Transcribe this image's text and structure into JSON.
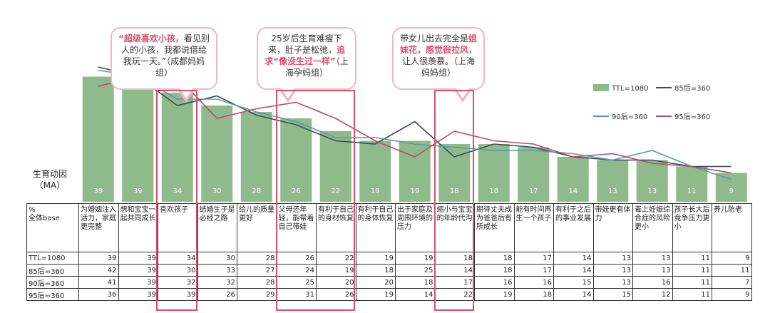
{
  "chart_data": {
    "type": "bar",
    "ylabel": "生育动因\n（MA）",
    "row_header": "%\n全体base",
    "categories": [
      "为婚姻注入活力，家庭更完整",
      "想和宝宝一起共同成长",
      "喜欢孩子",
      "结婚生子是必经之路",
      "给儿的质量更好",
      "父母还年轻，能帮着自己带娃",
      "有利于自己的身材恢复",
      "有利于自己的身体恢复",
      "出于家庭及周围环境的压力",
      "缩小与宝宝的年龄代沟",
      "期待丈夫成为爸爸后有所成长",
      "能有时间再生一个孩子",
      "有利于之后的事业发展",
      "带娃更有体力",
      "毒上妊娠综合症的风险更小",
      "孩子长大后竞争压力更小",
      "养儿防老"
    ],
    "series": [
      {
        "name": "TTL=1080",
        "color": "#8fba8c",
        "values": [
          39,
          39,
          34,
          30,
          28,
          26,
          22,
          19,
          19,
          18,
          18,
          17,
          14,
          13,
          13,
          11,
          9
        ]
      },
      {
        "name": "85后=360",
        "color": "#3b4a5a",
        "values": [
          42,
          39,
          30,
          33,
          27,
          24,
          19,
          18,
          25,
          14,
          18,
          17,
          14,
          13,
          13,
          11,
          11
        ]
      },
      {
        "name": "90后=360",
        "color": "#5a9aa8",
        "values": [
          41,
          39,
          32,
          32,
          28,
          25,
          20,
          20,
          18,
          17,
          16,
          16,
          15,
          13,
          16,
          11,
          7
        ]
      },
      {
        "name": "95后=360",
        "color": "#b84a6a",
        "values": [
          36,
          39,
          39,
          26,
          29,
          31,
          26,
          19,
          14,
          22,
          19,
          18,
          14,
          15,
          12,
          11,
          9
        ]
      }
    ],
    "ylim": [
      0,
      50
    ],
    "legend_position": "right"
  },
  "callouts": [
    {
      "pre": "",
      "hl": "“超级喜欢小孩，",
      "post": "看见别人的小孩，我都说借给我玩一天。”（成都妈妈组）"
    },
    {
      "pre": "25岁后生育难瘦下来，肚子是松弛，",
      "hl": "追求“像没生过一样”",
      "post": "（上海孕妈组）"
    },
    {
      "pre": "带女儿出去完全是",
      "hl": "姐妹花，感觉很拉风，",
      "post": "让人很羡慕。（上海妈妈组）"
    }
  ]
}
